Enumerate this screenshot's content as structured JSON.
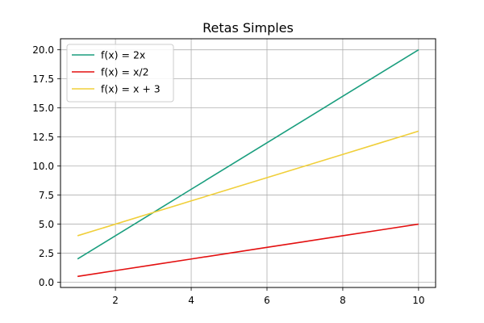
{
  "chart_data": {
    "type": "line",
    "title": "Retas Simples",
    "xlabel": "",
    "ylabel": "",
    "xlim": [
      0.55,
      10.45
    ],
    "ylim": [
      -0.45,
      20.95
    ],
    "xticks": [
      2,
      4,
      6,
      8,
      10
    ],
    "xtick_labels": [
      "2",
      "4",
      "6",
      "8",
      "10"
    ],
    "yticks": [
      0,
      2.5,
      5,
      7.5,
      10,
      12.5,
      15,
      17.5,
      20
    ],
    "ytick_labels": [
      "0.0",
      "2.5",
      "5.0",
      "7.5",
      "10.0",
      "12.5",
      "15.0",
      "17.5",
      "20.0"
    ],
    "grid": true,
    "legend_position": "top-left",
    "x": [
      1,
      2,
      3,
      4,
      5,
      6,
      7,
      8,
      9,
      10
    ],
    "series": [
      {
        "name": "f(x) = 2x",
        "color": "#1a9e7e",
        "values": [
          2,
          4,
          6,
          8,
          10,
          12,
          14,
          16,
          18,
          20
        ]
      },
      {
        "name": "f(x) = x/2",
        "color": "#e31010",
        "values": [
          0.5,
          1,
          1.5,
          2,
          2.5,
          3,
          3.5,
          4,
          4.5,
          5
        ]
      },
      {
        "name": "f(x) = x + 3",
        "color": "#f0cf3a",
        "values": [
          4,
          5,
          6,
          7,
          8,
          9,
          10,
          11,
          12,
          13
        ]
      }
    ]
  }
}
